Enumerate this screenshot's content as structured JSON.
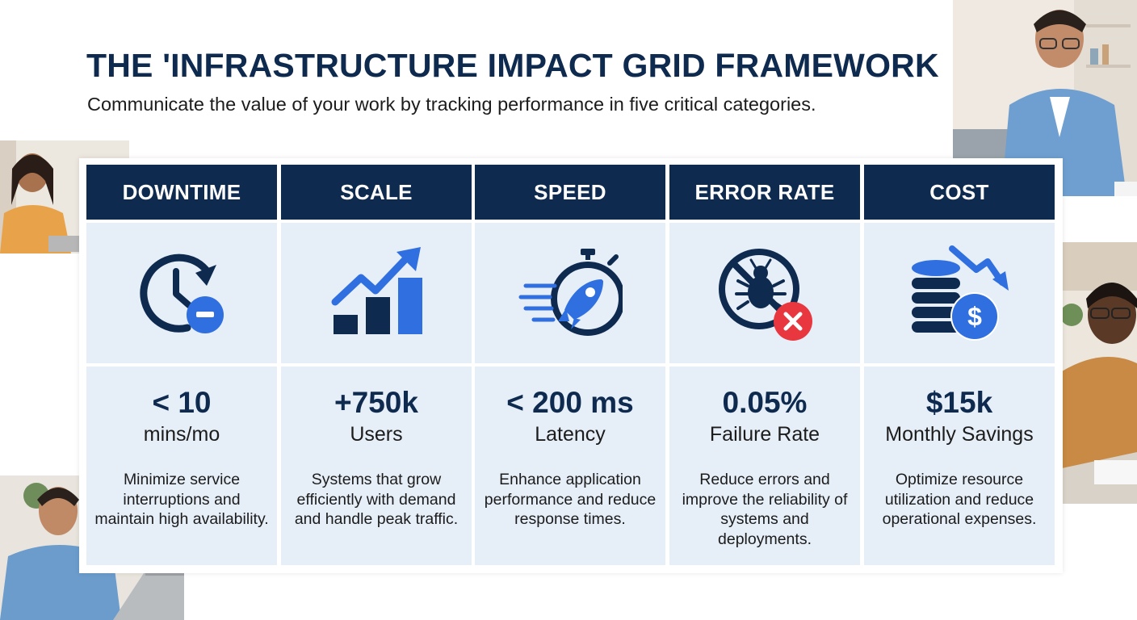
{
  "header": {
    "title": "THE 'INFRASTRUCTURE IMPACT GRID FRAMEWORK",
    "subtitle": "Communicate the value of your work by tracking performance in five critical categories."
  },
  "colors": {
    "navy": "#0e2a4f",
    "accent_blue": "#2f6fe0",
    "cell_bg": "#e6eef8",
    "alert_red": "#e8373f"
  },
  "categories": [
    {
      "header": "DOWNTIME",
      "icon": "clock-minus-icon",
      "value": "< 10",
      "unit": "mins/mo",
      "description": "Minimize service interruptions and maintain high availability."
    },
    {
      "header": "SCALE",
      "icon": "growth-chart-icon",
      "value": "+750k",
      "unit": "Users",
      "description": "Systems that grow efficiently with demand and handle peak traffic."
    },
    {
      "header": "SPEED",
      "icon": "rocket-stopwatch-icon",
      "value": "< 200 ms",
      "unit": "Latency",
      "description": "Enhance application performance and reduce response times."
    },
    {
      "header": "ERROR RATE",
      "icon": "no-bug-icon",
      "value": "0.05%",
      "unit": "Failure Rate",
      "description": "Reduce errors and improve the reliability of systems and deployments."
    },
    {
      "header": "COST",
      "icon": "coins-savings-icon",
      "value": "$15k",
      "unit": "Monthly Savings",
      "description": "Optimize resource utilization and reduce operational expenses."
    }
  ]
}
